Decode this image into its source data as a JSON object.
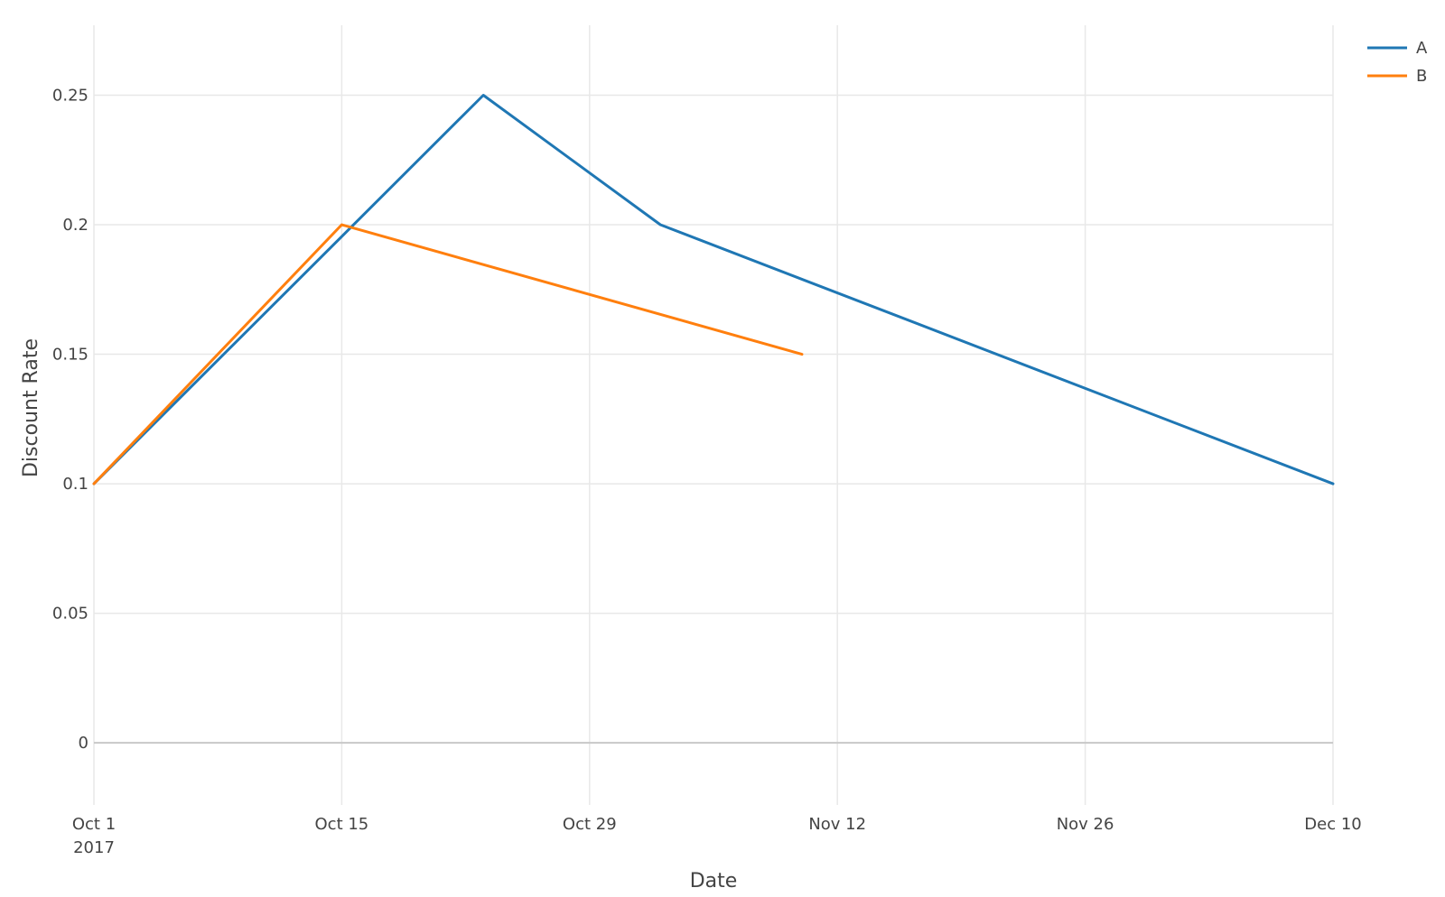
{
  "chart_data": {
    "type": "line",
    "title": "",
    "xlabel": "Date",
    "ylabel": "Discount Rate",
    "x_axis": {
      "ticks": [
        {
          "date": "2017-10-01",
          "label": "Oct 1",
          "sublabel": "2017"
        },
        {
          "date": "2017-10-15",
          "label": "Oct 15"
        },
        {
          "date": "2017-10-29",
          "label": "Oct 29"
        },
        {
          "date": "2017-11-12",
          "label": "Nov 12"
        },
        {
          "date": "2017-11-26",
          "label": "Nov 26"
        },
        {
          "date": "2017-12-10",
          "label": "Dec 10"
        }
      ],
      "range": [
        "2017-10-01",
        "2017-12-10"
      ]
    },
    "y_axis": {
      "ticks": [
        {
          "value": 0,
          "label": "0"
        },
        {
          "value": 0.05,
          "label": "0.05"
        },
        {
          "value": 0.1,
          "label": "0.1"
        },
        {
          "value": 0.15,
          "label": "0.15"
        },
        {
          "value": 0.2,
          "label": "0.2"
        },
        {
          "value": 0.25,
          "label": "0.25"
        }
      ],
      "ylim": [
        -0.024,
        0.277
      ]
    },
    "grid": true,
    "legend_position": "top-right",
    "series": [
      {
        "name": "A",
        "color": "#1f77b4",
        "x": [
          "2017-10-01",
          "2017-10-23",
          "2017-11-02",
          "2017-12-10"
        ],
        "y": [
          0.1,
          0.25,
          0.2,
          0.1
        ]
      },
      {
        "name": "B",
        "color": "#ff7f0e",
        "x": [
          "2017-10-01",
          "2017-10-15",
          "2017-11-10"
        ],
        "y": [
          0.1,
          0.2,
          0.15
        ]
      }
    ]
  }
}
